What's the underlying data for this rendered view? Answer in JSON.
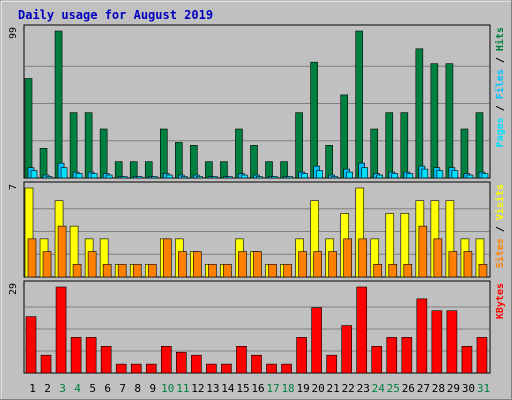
{
  "chart_data": {
    "type": "bar",
    "title": "Daily usage for August 2019",
    "categories": [
      "1",
      "2",
      "3",
      "4",
      "5",
      "6",
      "7",
      "8",
      "9",
      "10",
      "11",
      "12",
      "13",
      "14",
      "15",
      "16",
      "17",
      "18",
      "19",
      "20",
      "21",
      "22",
      "23",
      "24",
      "25",
      "26",
      "27",
      "28",
      "29",
      "30",
      "31"
    ],
    "weekend_days": [
      "3",
      "4",
      "10",
      "11",
      "17",
      "18",
      "24",
      "25",
      "31"
    ],
    "panels": [
      {
        "name": "hits-files-pages",
        "ymax_label": "99",
        "ylim": [
          0,
          99
        ],
        "y_title_parts": [
          "Pages",
          "Files",
          "Hits"
        ],
        "series": [
          {
            "name": "Hits",
            "color": "#008040",
            "values": [
              67,
              20,
              99,
              44,
              44,
              33,
              11,
              11,
              11,
              33,
              24,
              22,
              11,
              11,
              33,
              22,
              11,
              11,
              44,
              78,
              22,
              56,
              99,
              33,
              44,
              44,
              87,
              77,
              77,
              33,
              44
            ]
          },
          {
            "name": "Files",
            "color": "#00c0ff",
            "values": [
              7,
              2,
              10,
              4,
              4,
              3,
              1,
              1,
              1,
              3,
              2,
              2,
              1,
              1,
              3,
              2,
              1,
              1,
              4,
              8,
              2,
              6,
              10,
              3,
              4,
              4,
              8,
              7,
              7,
              3,
              4
            ]
          },
          {
            "name": "Pages",
            "color": "#00e0ff",
            "values": [
              5,
              1,
              7,
              3,
              3,
              2,
              1,
              1,
              1,
              2,
              1,
              1,
              1,
              1,
              2,
              1,
              1,
              1,
              3,
              5,
              1,
              4,
              7,
              2,
              3,
              3,
              6,
              5,
              5,
              2,
              3
            ]
          }
        ]
      },
      {
        "name": "visits-sites",
        "ymax_label": "7",
        "ylim": [
          0,
          7
        ],
        "y_title_parts": [
          "Sites",
          "Visits"
        ],
        "series": [
          {
            "name": "Visits",
            "color": "#ffff00",
            "values": [
              7,
              3,
              6,
              4,
              3,
              3,
              1,
              1,
              1,
              3,
              3,
              2,
              1,
              1,
              3,
              2,
              1,
              1,
              3,
              6,
              3,
              5,
              7,
              3,
              5,
              5,
              6,
              6,
              6,
              3,
              3
            ]
          },
          {
            "name": "Sites",
            "color": "#ff8000",
            "values": [
              3,
              2,
              4,
              1,
              2,
              1,
              1,
              1,
              1,
              3,
              2,
              2,
              1,
              1,
              2,
              2,
              1,
              1,
              2,
              2,
              2,
              3,
              3,
              1,
              1,
              1,
              4,
              3,
              2,
              2,
              1
            ]
          }
        ]
      },
      {
        "name": "kbytes",
        "ymax_label": "29",
        "ylim": [
          0,
          29
        ],
        "y_title_parts": [
          "KBytes"
        ],
        "series": [
          {
            "name": "KBytes",
            "color": "#ff0000",
            "values": [
              19,
              6,
              29,
              12,
              12,
              9,
              3,
              3,
              3,
              9,
              7,
              6,
              3,
              3,
              9,
              6,
              3,
              3,
              12,
              22,
              6,
              16,
              29,
              9,
              12,
              12,
              25,
              21,
              21,
              9,
              12
            ]
          }
        ]
      }
    ],
    "colors": {
      "background": "#c0c0c0",
      "plot_bg": "#c0c0c0",
      "title": "#0000c0",
      "weekday_label": "#000000",
      "weekend_label": "#008040",
      "bar_outline": "#000000"
    }
  }
}
